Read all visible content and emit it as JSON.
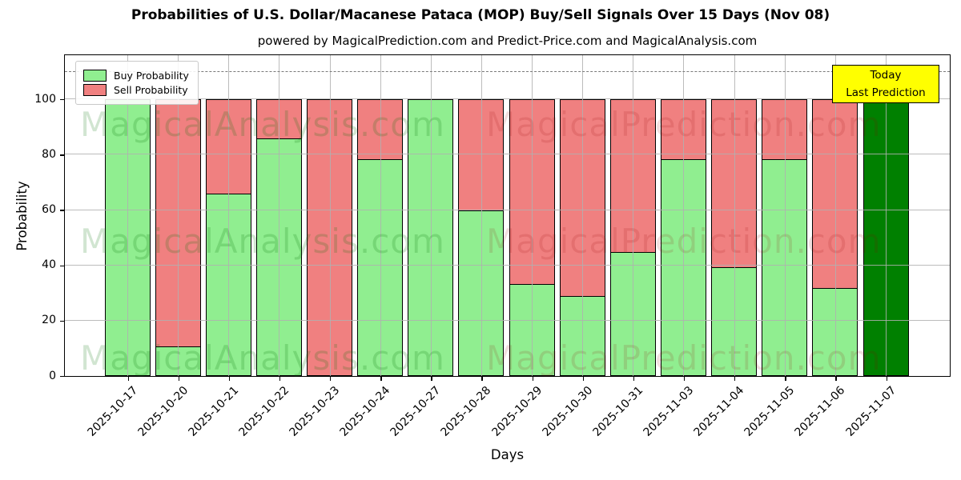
{
  "chart_data": {
    "type": "bar",
    "stacked": true,
    "title": "Probabilities of U.S. Dollar/Macanese Pataca (MOP) Buy/Sell Signals Over 15 Days (Nov 08)",
    "subtitle": "powered by MagicalPrediction.com and Predict-Price.com and MagicalAnalysis.com",
    "xlabel": "Days",
    "ylabel": "Probability",
    "categories": [
      "2025-10-17",
      "2025-10-20",
      "2025-10-21",
      "2025-10-22",
      "2025-10-23",
      "2025-10-24",
      "2025-10-27",
      "2025-10-28",
      "2025-10-29",
      "2025-10-30",
      "2025-10-31",
      "2025-11-03",
      "2025-11-04",
      "2025-11-05",
      "2025-11-06",
      "2025-11-07"
    ],
    "series": [
      {
        "name": "Buy Probability",
        "color": "#90EE90",
        "values": [
          100,
          11,
          66,
          86,
          0,
          78.5,
          100,
          60,
          33.5,
          29,
          45,
          78.5,
          39.5,
          78.5,
          32,
          100
        ]
      },
      {
        "name": "Sell Probability",
        "color": "#F08080",
        "values": [
          0,
          89,
          34,
          14,
          100,
          21.5,
          0,
          40,
          66.5,
          71,
          55,
          21.5,
          60.5,
          21.5,
          68,
          0
        ]
      }
    ],
    "today": {
      "index": 15,
      "color": "#008000",
      "lines": [
        "Today",
        "Last Prediction"
      ],
      "bg": "#FFFF00"
    },
    "yticks": [
      0,
      20,
      40,
      60,
      80,
      100
    ],
    "ylim": [
      0,
      116
    ],
    "dashed_line_y": 110,
    "grid": true,
    "legend_position": "upper left",
    "watermarks": {
      "left": "MagicalAnalysis.com",
      "right": "MagicalPrediction.com"
    }
  }
}
